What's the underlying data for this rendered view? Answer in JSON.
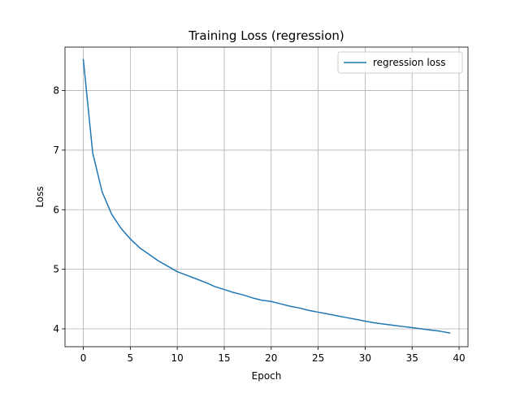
{
  "chart_data": {
    "type": "line",
    "title": "Training Loss (regression)",
    "xlabel": "Epoch",
    "ylabel": "Loss",
    "xlim": [
      -1.95,
      40.95
    ],
    "ylim": [
      3.7,
      8.73
    ],
    "xticks": [
      0,
      5,
      10,
      15,
      20,
      25,
      30,
      35,
      40
    ],
    "yticks": [
      4,
      5,
      6,
      7,
      8
    ],
    "grid": true,
    "legend_position": "top-right",
    "series": [
      {
        "name": "regression loss",
        "color": "#1f77b4",
        "x": [
          0,
          1,
          2,
          3,
          4,
          5,
          6,
          7,
          8,
          9,
          10,
          11,
          12,
          13,
          14,
          15,
          16,
          17,
          18,
          19,
          20,
          21,
          22,
          23,
          24,
          25,
          26,
          27,
          28,
          29,
          30,
          31,
          32,
          33,
          34,
          35,
          36,
          37,
          38,
          39
        ],
        "y": [
          8.52,
          6.95,
          6.3,
          5.93,
          5.69,
          5.51,
          5.36,
          5.25,
          5.14,
          5.05,
          4.96,
          4.9,
          4.84,
          4.78,
          4.71,
          4.66,
          4.61,
          4.57,
          4.52,
          4.48,
          4.46,
          4.42,
          4.38,
          4.35,
          4.31,
          4.28,
          4.25,
          4.22,
          4.19,
          4.16,
          4.13,
          4.1,
          4.08,
          4.06,
          4.04,
          4.02,
          4.0,
          3.98,
          3.96,
          3.93
        ]
      }
    ]
  }
}
